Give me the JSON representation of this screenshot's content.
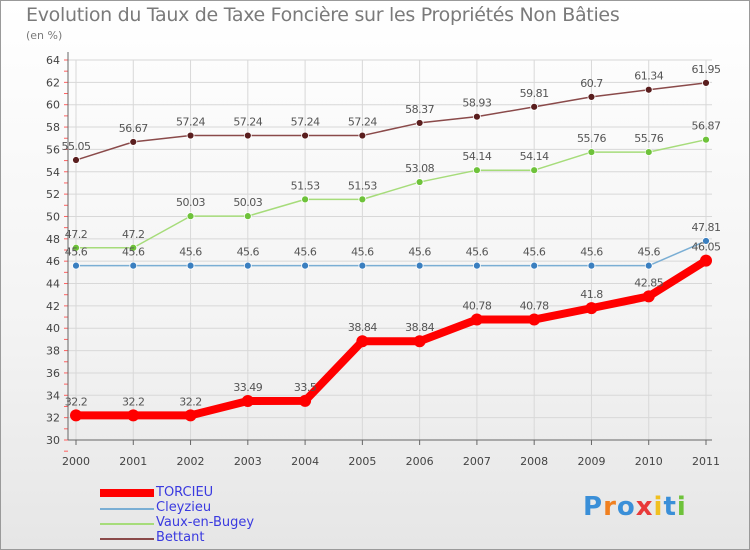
{
  "header": {
    "title": "Evolution du Taux de Taxe Foncière sur les Propriétés Non Bâties",
    "subtitle": "(en %)"
  },
  "chart_data": {
    "type": "line",
    "x": [
      "2000",
      "2001",
      "2002",
      "2003",
      "2004",
      "2005",
      "2006",
      "2007",
      "2008",
      "2009",
      "2010",
      "2011"
    ],
    "ylim": [
      30,
      64
    ],
    "yticks": [
      30,
      32,
      34,
      36,
      38,
      40,
      42,
      44,
      46,
      48,
      50,
      52,
      54,
      56,
      58,
      60,
      62,
      64
    ],
    "grid": true,
    "legend_position": "bottom-left",
    "series": [
      {
        "name": "TORCIEU",
        "color": "#ff0000",
        "values": [
          32.2,
          32.2,
          32.2,
          33.49,
          33.5,
          38.84,
          38.84,
          40.78,
          40.78,
          41.8,
          42.85,
          46.05
        ],
        "labels": [
          "32.2",
          "32.2",
          "32.2",
          "33.49",
          "33.5",
          "38.84",
          "38.84",
          "40.78",
          "40.78",
          "41.8",
          "42.85",
          "46.05"
        ]
      },
      {
        "name": "Cleyzieu",
        "color": "#7aaed4",
        "marker": "#3a7fc0",
        "values": [
          45.6,
          45.6,
          45.6,
          45.6,
          45.6,
          45.6,
          45.6,
          45.6,
          45.6,
          45.6,
          45.6,
          47.81
        ],
        "labels": [
          "45.6",
          "45.6",
          "45.6",
          "45.6",
          "45.6",
          "45.6",
          "45.6",
          "45.6",
          "45.6",
          "45.6",
          "45.6",
          "47.81"
        ]
      },
      {
        "name": "Vaux-en-Bugey",
        "color": "#a6dc7a",
        "marker": "#6ec23a",
        "values": [
          47.2,
          47.2,
          50.03,
          50.03,
          51.53,
          51.53,
          53.08,
          54.14,
          54.14,
          55.76,
          55.76,
          56.87
        ],
        "labels": [
          "47.2",
          "47.2",
          "50.03",
          "50.03",
          "51.53",
          "51.53",
          "53.08",
          "54.14",
          "54.14",
          "55.76",
          "55.76",
          "56.87"
        ]
      },
      {
        "name": "Bettant",
        "color": "#8a4a4a",
        "marker": "#5a1e1e",
        "values": [
          55.05,
          56.67,
          57.24,
          57.24,
          57.24,
          57.24,
          58.37,
          58.93,
          59.81,
          60.7,
          61.34,
          61.95
        ],
        "labels": [
          "55.05",
          "56.67",
          "57.24",
          "57.24",
          "57.24",
          "57.24",
          "58.37",
          "58.93",
          "59.81",
          "60.7",
          "61.34",
          "61.95"
        ]
      }
    ]
  },
  "logo": {
    "letters": [
      "P",
      "r",
      "o",
      "x",
      "i",
      "t",
      "i"
    ],
    "colors": [
      "#3a8fd8",
      "#f08020",
      "#3a8fd8",
      "#e83a3a",
      "#f0c020",
      "#3a8fd8",
      "#6ec23a"
    ]
  }
}
